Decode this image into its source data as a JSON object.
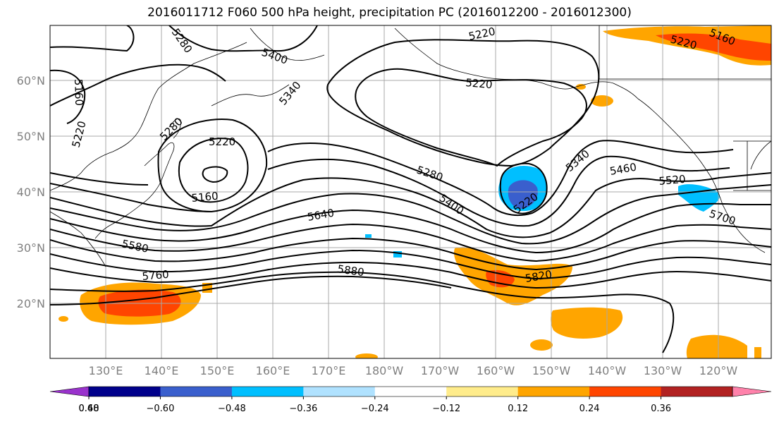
{
  "title": "2016011712 F060 500 hPa height, precipitation PC (2016012200 - 2016012300)",
  "map": {
    "lat_labels": [
      "60°N",
      "50°N",
      "40°N",
      "30°N",
      "20°N"
    ],
    "lon_labels": [
      "130°E",
      "140°E",
      "150°E",
      "160°E",
      "170°E",
      "180°W",
      "170°W",
      "160°W",
      "150°W",
      "140°W",
      "130°W",
      "120°W"
    ],
    "contour_labels": {
      "c5280a": "5280",
      "c5400a": "5400",
      "c5220a": "5220",
      "c5220b": "5220",
      "c5160a": "5160",
      "c5160b": "5160",
      "c5220c": "5220",
      "c5340a": "5340",
      "c5280b": "5280",
      "c5220d": "5220",
      "c5160c": "5160",
      "c5280c": "5280",
      "c5400b": "5400",
      "c5220e": "5220",
      "c5340b": "5340",
      "c5460": "5460",
      "c5520": "5520",
      "c5700": "5700",
      "c5640": "5640",
      "c5580": "5580",
      "c5760": "5760",
      "c5880": "5880",
      "c5820": "5820"
    }
  },
  "colorbar": {
    "ticks": [
      "−0.60",
      "−0.48",
      "−0.36",
      "−0.24",
      "−0.12",
      "0.12",
      "0.24",
      "0.36",
      "0.48",
      "0.60"
    ],
    "colors": [
      "#9932cc",
      "#00008b",
      "#3a5fcd",
      "#00bfff",
      "#b0e2ff",
      "#ffffff",
      "#ffec8b",
      "#ffa500",
      "#ff4500",
      "#b22222",
      "#ff82ab"
    ]
  }
}
